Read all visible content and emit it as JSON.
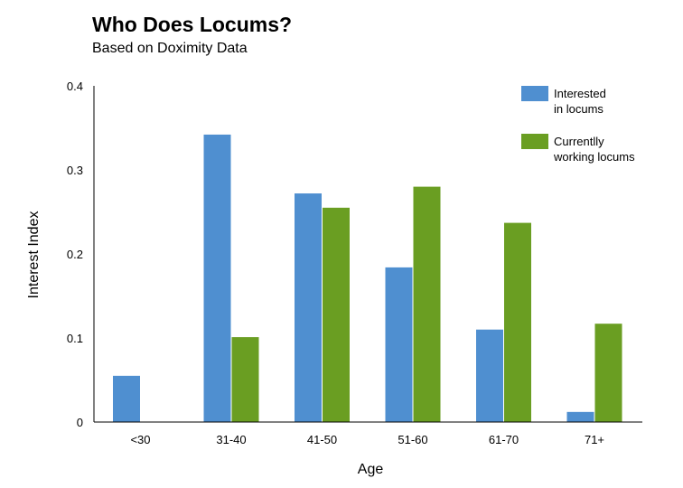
{
  "chart_data": {
    "type": "bar",
    "title": "Who Does Locums?",
    "subtitle": "Based on Doximity Data",
    "xlabel": "Age",
    "ylabel": "Interest Index",
    "categories": [
      "<30",
      "31-40",
      "41-50",
      "51-60",
      "61-70",
      "71+"
    ],
    "series": [
      {
        "name": [
          "Interested",
          "in locums"
        ],
        "color": "#4f8fd0",
        "values": [
          0.055,
          0.342,
          0.272,
          0.184,
          0.11,
          0.012
        ]
      },
      {
        "name": [
          "Currentlly",
          "working locums"
        ],
        "color": "#6a9e22",
        "values": [
          null,
          0.101,
          0.255,
          0.28,
          0.237,
          0.117
        ]
      }
    ],
    "yticks": [
      "0",
      "0.1",
      "0.2",
      "0.3",
      "0.4"
    ],
    "ylim": [
      0,
      0.4
    ],
    "legend": "top-right",
    "grid": false
  }
}
